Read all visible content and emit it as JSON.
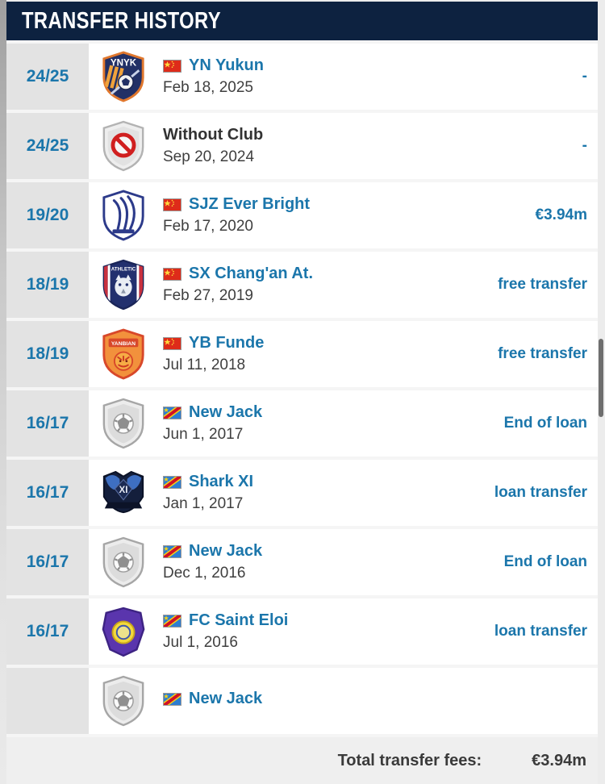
{
  "header": {
    "title": "TRANSFER HISTORY"
  },
  "footer": {
    "label": "Total transfer fees:",
    "value": "€3.94m"
  },
  "colors": {
    "header_bg": "#0d2240",
    "link_blue": "#1b76ab",
    "season_cell_bg": "#e3e3e3",
    "date_text": "#3f3f3f",
    "footer_bg": "#efefef",
    "row_bg": "#ffffff"
  },
  "rows": [
    {
      "season": "24/25",
      "badge": "yn-yukun",
      "flag": "china",
      "club": "YN Yukun",
      "date": "Feb 18, 2025",
      "fee": "-",
      "club_is_link": true
    },
    {
      "season": "24/25",
      "badge": "without-club",
      "flag": null,
      "club": "Without Club",
      "date": "Sep 20, 2024",
      "fee": "-",
      "club_is_link": false
    },
    {
      "season": "19/20",
      "badge": "sjz-ever-bright",
      "flag": "china",
      "club": "SJZ Ever Bright",
      "date": "Feb 17, 2020",
      "fee": "€3.94m",
      "club_is_link": true
    },
    {
      "season": "18/19",
      "badge": "sx-changan",
      "flag": "china",
      "club": "SX Chang'an At.",
      "date": "Feb 27, 2019",
      "fee": "free transfer",
      "club_is_link": true
    },
    {
      "season": "18/19",
      "badge": "yb-funde",
      "flag": "china",
      "club": "YB Funde",
      "date": "Jul 11, 2018",
      "fee": "free transfer",
      "club_is_link": true
    },
    {
      "season": "16/17",
      "badge": "generic-club",
      "flag": "dr-congo",
      "club": "New Jack",
      "date": "Jun 1, 2017",
      "fee": "End of loan",
      "club_is_link": true
    },
    {
      "season": "16/17",
      "badge": "shark-xi",
      "flag": "dr-congo",
      "club": "Shark XI",
      "date": "Jan 1, 2017",
      "fee": "loan transfer",
      "club_is_link": true
    },
    {
      "season": "16/17",
      "badge": "generic-club",
      "flag": "dr-congo",
      "club": "New Jack",
      "date": "Dec 1, 2016",
      "fee": "End of loan",
      "club_is_link": true
    },
    {
      "season": "16/17",
      "badge": "fc-saint-eloi",
      "flag": "dr-congo",
      "club": "FC Saint Eloi",
      "date": "Jul 1, 2016",
      "fee": "loan transfer",
      "club_is_link": true
    },
    {
      "season": "",
      "badge": "generic-club",
      "flag": "dr-congo",
      "club": "New Jack",
      "date": "",
      "fee": "",
      "club_is_link": true
    }
  ]
}
